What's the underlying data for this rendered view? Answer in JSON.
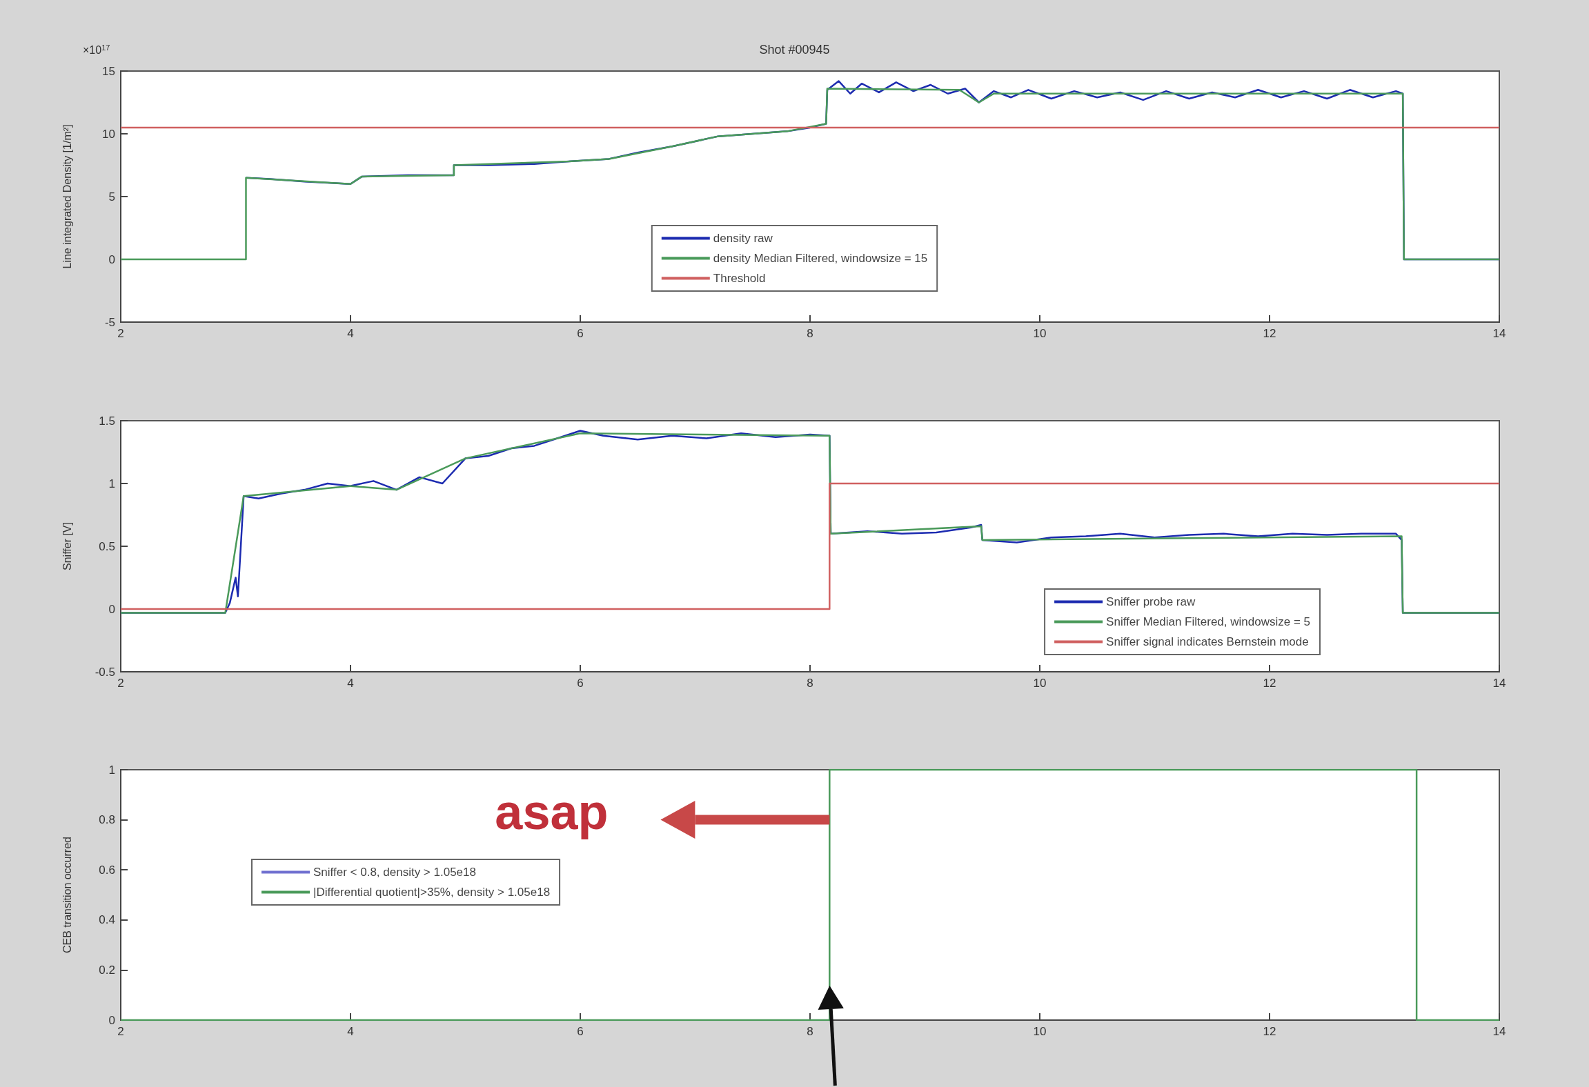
{
  "chart_data": [
    {
      "type": "line",
      "title": "Shot #00945",
      "ylabel": "Line integrated Density [1/m²]",
      "annotations": [
        "×10$^{17}$"
      ],
      "xlim": [
        2,
        14
      ],
      "xticks": [
        2,
        4,
        6,
        8,
        10,
        12,
        14
      ],
      "ylim": [
        -5,
        15
      ],
      "yticks": [
        -5,
        0,
        5,
        10,
        15
      ],
      "grid": false,
      "legend": "bottom",
      "series": [
        {
          "name": "density raw",
          "color": "#1c2bb0",
          "x": [
            3.09,
            3.3,
            3.6,
            4.0,
            4.1,
            4.5,
            4.9,
            4.9,
            5.2,
            5.6,
            5.9,
            6.25,
            6.5,
            6.8,
            7.0,
            7.2,
            7.5,
            7.8,
            8.0,
            8.14,
            8.15,
            8.25,
            8.35,
            8.45,
            8.6,
            8.75,
            8.9,
            9.05,
            9.2,
            9.35,
            9.47,
            9.6,
            9.75,
            9.9,
            10.1,
            10.3,
            10.5,
            10.7,
            10.9,
            11.1,
            11.3,
            11.5,
            11.7,
            11.9,
            12.1,
            12.3,
            12.5,
            12.7,
            12.9,
            13.1,
            13.16,
            13.17,
            14
          ],
          "values": [
            6.5,
            6.4,
            6.2,
            6.0,
            6.6,
            6.7,
            6.7,
            7.5,
            7.5,
            7.6,
            7.8,
            8.0,
            8.5,
            9.0,
            9.4,
            9.8,
            10.0,
            10.2,
            10.5,
            10.8,
            13.5,
            14.2,
            13.2,
            14.0,
            13.3,
            14.1,
            13.4,
            13.9,
            13.2,
            13.6,
            12.5,
            13.4,
            12.9,
            13.5,
            12.8,
            13.4,
            12.9,
            13.3,
            12.7,
            13.4,
            12.8,
            13.3,
            12.9,
            13.5,
            12.9,
            13.4,
            12.8,
            13.5,
            12.9,
            13.4,
            13.2,
            0,
            0
          ]
        },
        {
          "name": "density Median Filtered, windowsize = 15",
          "color": "#4a9a5a",
          "x": [
            2,
            3.09,
            3.09,
            4.0,
            4.1,
            4.9,
            4.9,
            5.9,
            6.25,
            6.8,
            7.2,
            7.8,
            8.14,
            8.15,
            9.3,
            9.47,
            9.6,
            13.16,
            13.17,
            14
          ],
          "values": [
            0,
            0,
            6.5,
            6.0,
            6.6,
            6.7,
            7.5,
            7.8,
            8.0,
            9.0,
            9.8,
            10.2,
            10.8,
            13.6,
            13.5,
            12.5,
            13.2,
            13.2,
            0,
            0
          ]
        },
        {
          "name": "Threshold",
          "color": "#d06060",
          "x": [
            2,
            14
          ],
          "values": [
            10.5,
            10.5
          ]
        }
      ]
    },
    {
      "type": "line",
      "ylabel": "Sniffer [V]",
      "xlim": [
        2,
        14
      ],
      "xticks": [
        2,
        4,
        6,
        8,
        10,
        12,
        14
      ],
      "ylim": [
        -0.5,
        1.5
      ],
      "yticks": [
        -0.5,
        0,
        0.5,
        1,
        1.5
      ],
      "grid": false,
      "legend": "bottom right",
      "series": [
        {
          "name": "Sniffer probe raw",
          "color": "#1c2bb0",
          "x": [
            2,
            2.91,
            2.95,
            3.0,
            3.02,
            3.07,
            3.2,
            3.4,
            3.6,
            3.8,
            4.0,
            4.2,
            4.4,
            4.6,
            4.8,
            5.0,
            5.2,
            5.4,
            5.6,
            5.8,
            6.0,
            6.2,
            6.5,
            6.8,
            7.1,
            7.4,
            7.7,
            8.0,
            8.17,
            8.18,
            8.5,
            8.8,
            9.1,
            9.4,
            9.49,
            9.5,
            9.8,
            10.1,
            10.4,
            10.7,
            11.0,
            11.3,
            11.6,
            11.9,
            12.2,
            12.5,
            12.8,
            13.1,
            13.15,
            13.16,
            14
          ],
          "values": [
            -0.03,
            -0.03,
            0.05,
            0.25,
            0.1,
            0.9,
            0.88,
            0.92,
            0.95,
            1.0,
            0.98,
            1.02,
            0.95,
            1.05,
            1.0,
            1.2,
            1.22,
            1.28,
            1.3,
            1.36,
            1.42,
            1.38,
            1.35,
            1.38,
            1.36,
            1.4,
            1.37,
            1.39,
            1.38,
            0.6,
            0.62,
            0.6,
            0.61,
            0.65,
            0.67,
            0.55,
            0.53,
            0.57,
            0.58,
            0.6,
            0.57,
            0.59,
            0.6,
            0.58,
            0.6,
            0.59,
            0.6,
            0.6,
            0.55,
            -0.03,
            -0.03
          ]
        },
        {
          "name": "Sniffer Median Filtered, windowsize = 5",
          "color": "#4a9a5a",
          "x": [
            2,
            2.91,
            3.07,
            4.0,
            4.4,
            5.0,
            6.0,
            8.17,
            8.18,
            9.49,
            9.5,
            13.15,
            13.16,
            14
          ],
          "values": [
            -0.03,
            -0.03,
            0.9,
            0.98,
            0.95,
            1.2,
            1.4,
            1.38,
            0.6,
            0.66,
            0.55,
            0.58,
            -0.03,
            -0.03
          ]
        },
        {
          "name": "Sniffer signal indicates Bernstein mode",
          "color": "#d06060",
          "x": [
            2,
            8.17,
            8.17,
            14
          ],
          "values": [
            0,
            0,
            1,
            1
          ]
        }
      ]
    },
    {
      "type": "line",
      "ylabel": "CEB transition occurred",
      "annotations": [
        "asap"
      ],
      "xlim": [
        2,
        14
      ],
      "xticks": [
        2,
        4,
        6,
        8,
        10,
        12,
        14
      ],
      "ylim": [
        0,
        1
      ],
      "yticks": [
        0,
        0.2,
        0.4,
        0.6,
        0.8,
        1
      ],
      "grid": false,
      "legend": "left",
      "series": [
        {
          "name": "Sniffer < 0.8, density > 1.05e18",
          "color": "#7070d0"
        },
        {
          "name": "|Differential quotient|>35%, density > 1.05e18",
          "color": "#4a9a5a",
          "x": [
            2,
            8.17,
            8.17,
            13.28,
            13.28,
            14
          ],
          "values": [
            0,
            0,
            1,
            1,
            0,
            0
          ]
        }
      ]
    }
  ]
}
